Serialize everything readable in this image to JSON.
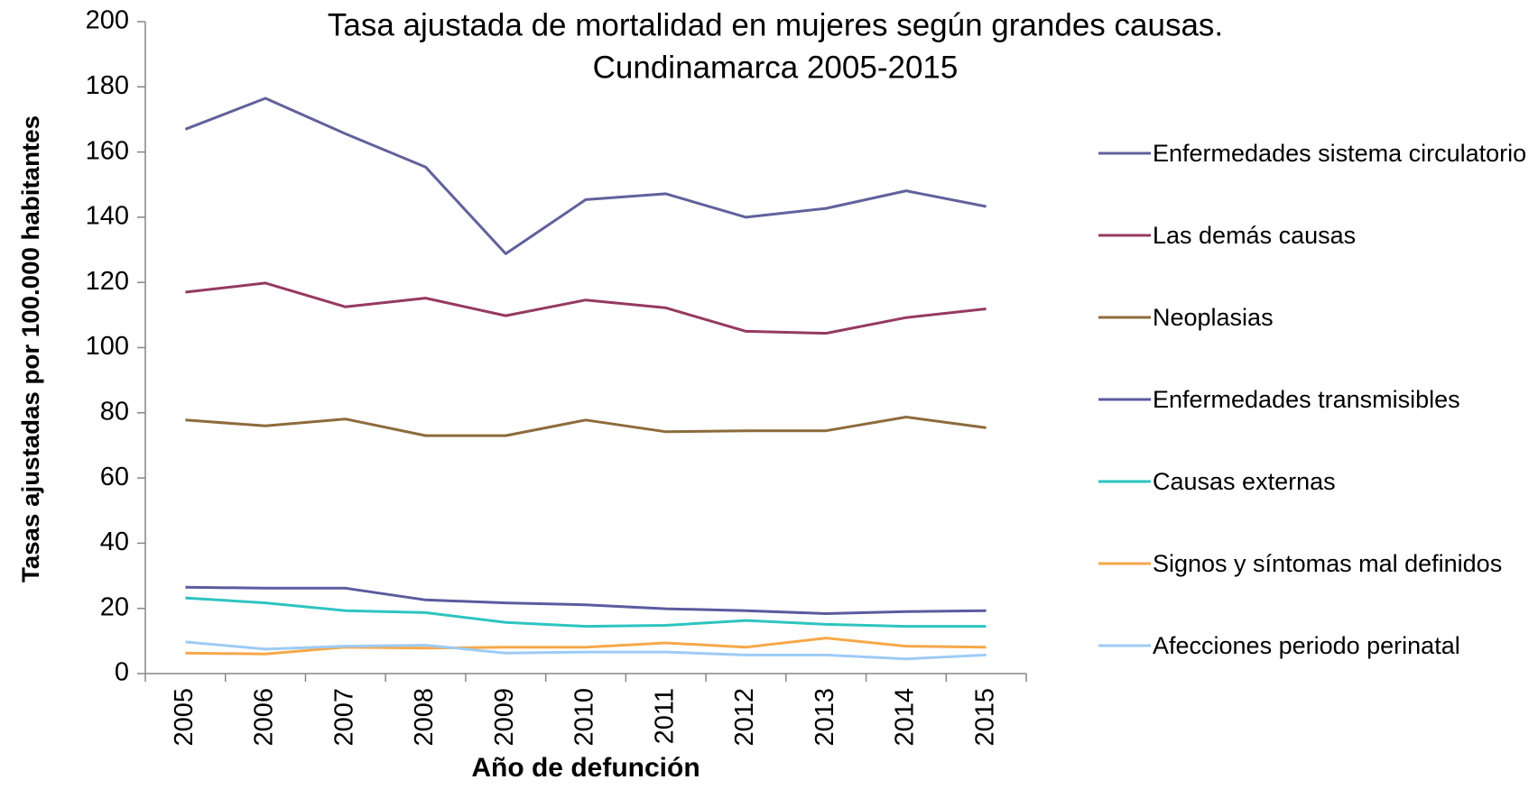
{
  "chart_data": {
    "type": "line",
    "title": "Tasa ajustada de mortalidad en mujeres según grandes causas.",
    "subtitle": "Cundinamarca 2005-2015",
    "x_label": "Año de defunción",
    "y_label": "Tasas ajustadas por 100.000 habitantes",
    "categories": [
      "2005",
      "2006",
      "2007",
      "2008",
      "2009",
      "2010",
      "2011",
      "2012",
      "2013",
      "2014",
      "2015"
    ],
    "ylim": [
      0,
      200
    ],
    "yticks": [
      0,
      20,
      40,
      60,
      80,
      100,
      120,
      140,
      160,
      180,
      200
    ],
    "grid": false,
    "legend": "right",
    "series": [
      {
        "name": "Enfermedades sistema circulatorio",
        "color": "#61619c",
        "values": [
          167,
          176.5,
          165.6,
          155.4,
          128.8,
          145.4,
          147.2,
          140,
          142.7,
          148.1,
          143.3
        ]
      },
      {
        "name": "Las demás causas",
        "color": "#953a60",
        "values": [
          117,
          119.8,
          112.5,
          115.2,
          109.8,
          114.6,
          112.2,
          105,
          104.4,
          109.2,
          111.9
        ]
      },
      {
        "name": "Neoplasias",
        "color": "#8d6b3c",
        "values": [
          77.8,
          76,
          78.1,
          73,
          73,
          77.8,
          74.2,
          74.5,
          74.5,
          78.7,
          75.4
        ]
      },
      {
        "name": "Enfermedades transmisibles",
        "color": "#5b5b9f",
        "values": [
          26.5,
          26.2,
          26.2,
          22.6,
          21.7,
          21.1,
          19.9,
          19.3,
          18.4,
          19,
          19.3
        ]
      },
      {
        "name": "Causas externas",
        "color": "#2ec4c0",
        "values": [
          23.2,
          21.7,
          19.3,
          18.7,
          15.7,
          14.5,
          14.8,
          16.3,
          15.1,
          14.5,
          14.5
        ]
      },
      {
        "name": "Signos y síntomas mal definidos",
        "color": "#f6a84a",
        "values": [
          6.3,
          6,
          8.1,
          7.8,
          8.1,
          8.1,
          9.4,
          8.1,
          10.9,
          8.4,
          8.1
        ]
      },
      {
        "name": "Afecciones periodo perinatal",
        "color": "#9ecbf5",
        "values": [
          9.7,
          7.5,
          8.4,
          8.7,
          6.3,
          6.6,
          6.6,
          5.7,
          5.7,
          4.5,
          5.7
        ]
      }
    ]
  }
}
